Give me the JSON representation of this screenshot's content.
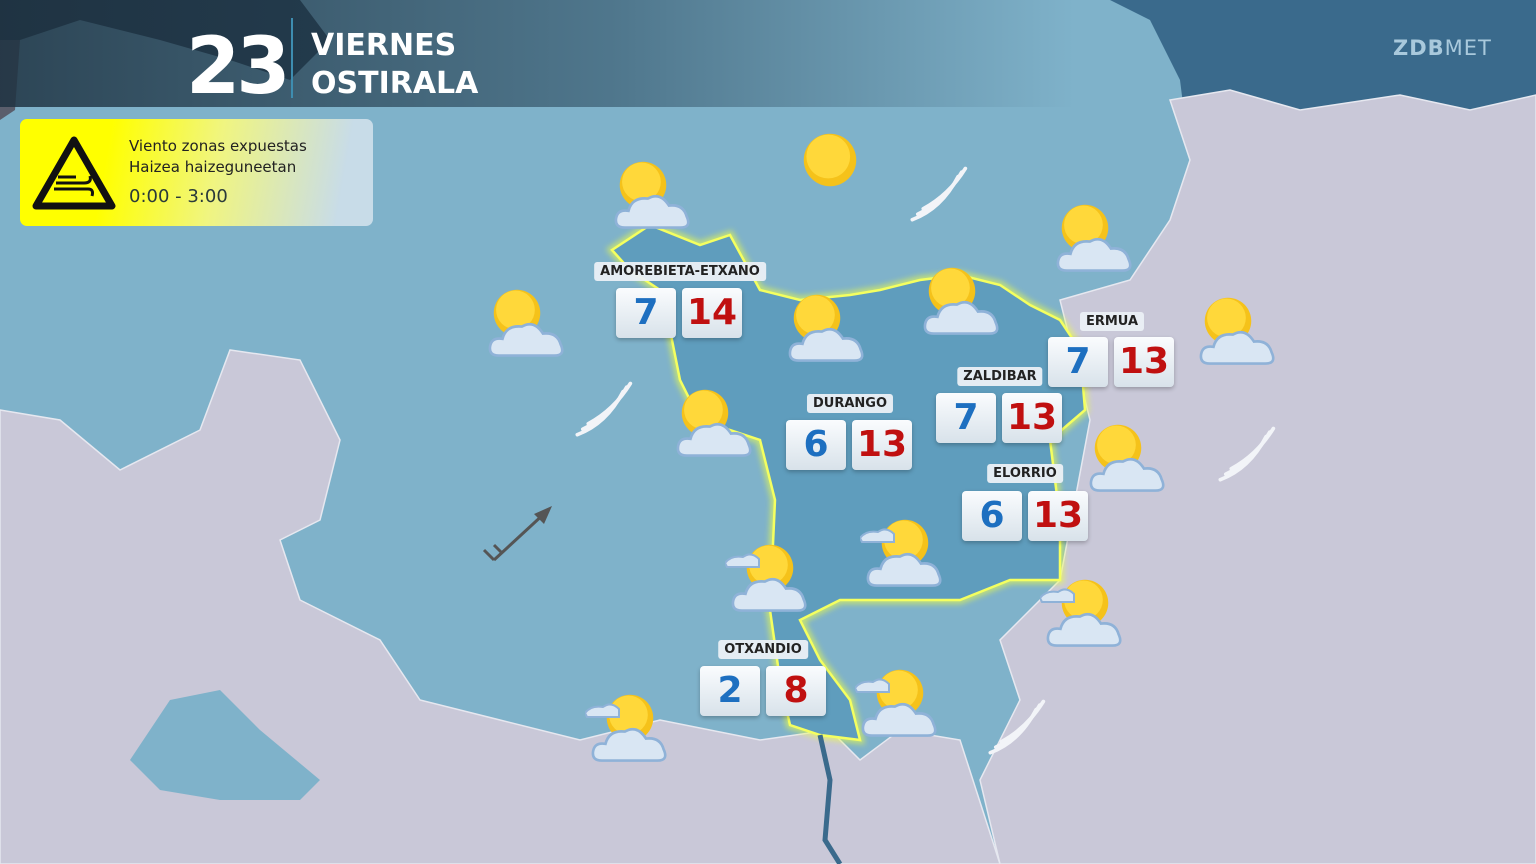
{
  "header": {
    "day_number": "23",
    "day_es": "VIERNES",
    "day_eu": "OSTIRALA"
  },
  "logo": "ZDBMET",
  "warning": {
    "icon": "wind-warning-triangle-icon",
    "line1": "Viento zonas expuestas",
    "line2": "Haizea haizeguneetan",
    "time": "0:00 - 3:00",
    "color": "#ffff00"
  },
  "colors": {
    "sea": "#7fb2ca",
    "land": "#c9c8d8",
    "region": "#5f9dbd",
    "region_border": "#f0ff40",
    "min_temp": "#1d6fc0",
    "max_temp": "#c01010"
  },
  "cities": [
    {
      "name": "AMOREBIETA-ETXANO",
      "min": "7",
      "max": "14"
    },
    {
      "name": "ERMUA",
      "min": "7",
      "max": "13"
    },
    {
      "name": "ZALDIBAR",
      "min": "7",
      "max": "13"
    },
    {
      "name": "DURANGO",
      "min": "6",
      "max": "13"
    },
    {
      "name": "ELORRIO",
      "min": "6",
      "max": "13"
    },
    {
      "name": "OTXANDIO",
      "min": "2",
      "max": "8"
    }
  ],
  "weather_icons": [
    "sun-cloud",
    "sun",
    "wind",
    "sun-cloud",
    "sun-cloud",
    "sun-cloud",
    "sun-cloud",
    "sun-cloud",
    "wind",
    "sun-cloud",
    "sun-cloud",
    "wind",
    "cloud-sun-wind",
    "cloud-sun-wind",
    "cloud-sun-wind",
    "cloud-sun-wind",
    "cloud-sun-wind",
    "wind"
  ],
  "wind_arrow": {
    "direction": "southwest-wind",
    "icon": "wind-barb-icon"
  }
}
